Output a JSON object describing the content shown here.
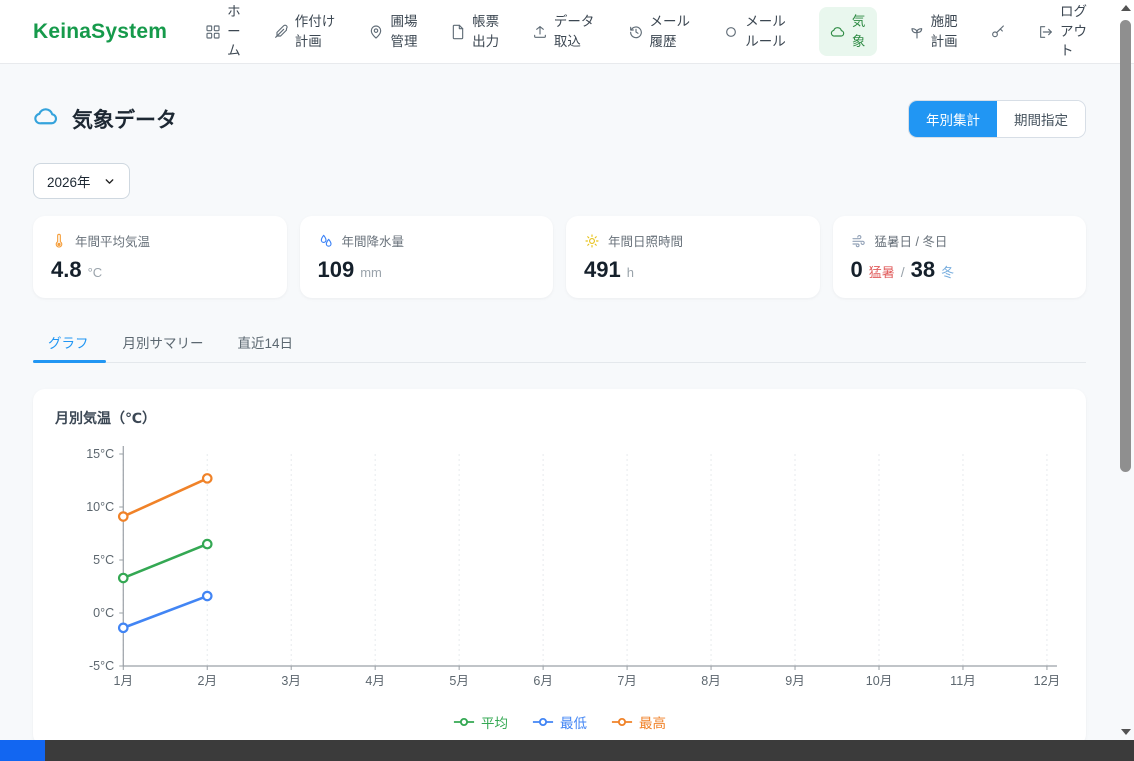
{
  "brand": "KeinaSystem",
  "nav": {
    "items": [
      {
        "name": "home",
        "label": "ホーム",
        "icon": "grid-icon",
        "wrap": 1,
        "active": false
      },
      {
        "name": "planting-plan",
        "label": "作付け計画",
        "icon": "feather-icon",
        "wrap": 3,
        "active": false
      },
      {
        "name": "field-management",
        "label": "圃場管理",
        "icon": "map-pin-icon",
        "wrap": 2,
        "active": false
      },
      {
        "name": "report-output",
        "label": "帳票出力",
        "icon": "file-icon",
        "wrap": 2,
        "active": false
      },
      {
        "name": "data-import",
        "label": "データ取込",
        "icon": "upload-icon",
        "wrap": 3,
        "active": false
      },
      {
        "name": "mail-history",
        "label": "メール履歴",
        "icon": "history-icon",
        "wrap": 3,
        "active": false
      },
      {
        "name": "mail-rules",
        "label": "メールルール",
        "icon": "circle-icon",
        "wrap": 3,
        "active": false
      },
      {
        "name": "weather",
        "label": "気象",
        "icon": "cloud-icon",
        "wrap": 1,
        "active": true
      },
      {
        "name": "fertilization-plan",
        "label": "施肥計画",
        "icon": "sprout-icon",
        "wrap": 2,
        "active": false
      },
      {
        "name": "password-key",
        "label": "",
        "icon": "key-icon",
        "wrap": 0,
        "active": false
      },
      {
        "name": "logout",
        "label": "ログアウト",
        "icon": "logout-icon",
        "wrap": 2,
        "active": false
      }
    ]
  },
  "page": {
    "title": "気象データ",
    "title_icon": "cloud-icon",
    "mode_toggle": [
      {
        "name": "yearly-summary",
        "label": "年別集計",
        "active": true
      },
      {
        "name": "period-select",
        "label": "期間指定",
        "active": false
      }
    ],
    "year_select": "2026年"
  },
  "stats": [
    {
      "name": "annual-avg-temp",
      "icon": "thermometer-icon",
      "icon_color": "#f59e3b",
      "label": "年間平均気温",
      "segments": [
        {
          "text": "4.8",
          "cls": "big"
        },
        {
          "text": "°C",
          "cls": "unit"
        }
      ]
    },
    {
      "name": "annual-precipitation",
      "icon": "droplets-icon",
      "icon_color": "#3b82f6",
      "label": "年間降水量",
      "segments": [
        {
          "text": "109",
          "cls": "big"
        },
        {
          "text": "mm",
          "cls": "unit"
        }
      ]
    },
    {
      "name": "annual-sunshine-hours",
      "icon": "sun-icon",
      "icon_color": "#e7c21a",
      "label": "年間日照時間",
      "segments": [
        {
          "text": "491",
          "cls": "big"
        },
        {
          "text": "h",
          "cls": "unit"
        }
      ]
    },
    {
      "name": "extreme-days",
      "icon": "wind-icon",
      "icon_color": "#94a3b8",
      "label": "猛暑日 / 冬日",
      "segments": [
        {
          "text": "0",
          "cls": "big"
        },
        {
          "text": "猛暑",
          "cls": "hot"
        },
        {
          "text": "/",
          "cls": "sep"
        },
        {
          "text": "38",
          "cls": "big"
        },
        {
          "text": "冬",
          "cls": "cold"
        }
      ]
    }
  ],
  "tabs": [
    {
      "name": "graph",
      "label": "グラフ",
      "active": true
    },
    {
      "name": "monthly-summary",
      "label": "月別サマリー",
      "active": false
    },
    {
      "name": "recent-14days",
      "label": "直近14日",
      "active": false
    }
  ],
  "chart_data": {
    "type": "line",
    "title": "月別気温（℃）",
    "categories": [
      "1月",
      "2月",
      "3月",
      "4月",
      "5月",
      "6月",
      "7月",
      "8月",
      "9月",
      "10月",
      "11月",
      "12月"
    ],
    "ylim": [
      -5,
      15
    ],
    "yticks": [
      15,
      10,
      5,
      0,
      -5
    ],
    "ytick_suffix": "°C",
    "grid": "vertical-dashed",
    "legend_position": "bottom",
    "series": [
      {
        "key": "avg",
        "name": "平均",
        "color": "#34a853",
        "values": [
          3.3,
          6.5,
          null,
          null,
          null,
          null,
          null,
          null,
          null,
          null,
          null,
          null
        ]
      },
      {
        "key": "min",
        "name": "最低",
        "color": "#4285f4",
        "values": [
          -1.4,
          1.6,
          null,
          null,
          null,
          null,
          null,
          null,
          null,
          null,
          null,
          null
        ]
      },
      {
        "key": "max",
        "name": "最高",
        "color": "#f08228",
        "values": [
          9.1,
          12.7,
          null,
          null,
          null,
          null,
          null,
          null,
          null,
          null,
          null,
          null
        ]
      }
    ]
  },
  "colors": {
    "brand_green": "#169a4b",
    "accent_blue": "#2196f3",
    "hot_red": "#e05b5b",
    "cold_blue": "#79aede"
  }
}
